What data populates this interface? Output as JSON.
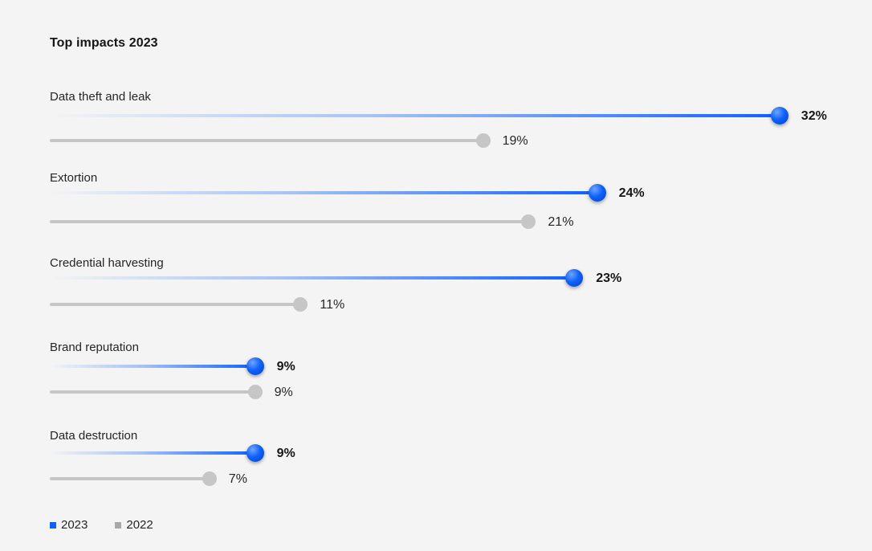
{
  "title": "Top impacts 2023",
  "chart_data": {
    "type": "bar",
    "orientation": "horizontal",
    "title": "Top impacts 2023",
    "categories": [
      "Data theft and leak",
      "Extortion",
      "Credential harvesting",
      "Brand reputation",
      "Data destruction"
    ],
    "series": [
      {
        "name": "2023",
        "values": [
          32,
          24,
          23,
          9,
          9
        ],
        "labels": [
          "32%",
          "24%",
          "23%",
          "9%",
          "9%"
        ],
        "color": "#0f62fe"
      },
      {
        "name": "2022",
        "values": [
          19,
          21,
          11,
          9,
          7
        ],
        "labels": [
          "19%",
          "21%",
          "11%",
          "9%",
          "7%"
        ],
        "color": "#c6c6c6"
      }
    ],
    "unit": "%",
    "legend_position": "bottom-left",
    "grid": false
  },
  "legend": [
    {
      "label": "2023",
      "color": "#0f62fe"
    },
    {
      "label": "2022",
      "color": "#a8a8a8"
    }
  ]
}
